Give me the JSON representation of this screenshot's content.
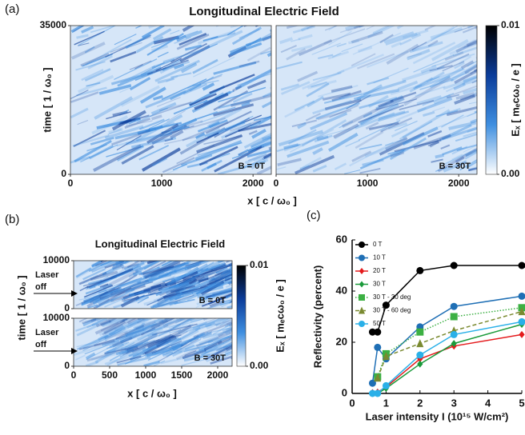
{
  "chart_data": [
    {
      "type": "heatmap",
      "panel_label": "(a)",
      "title": "Longitudinal Electric Field",
      "xlabel": "x [ c / ω₀ ]",
      "ylabel": "time [ 1 / ω₀ ]",
      "colorbar_label": "Eₓ [ mₑcω₀ / e ]",
      "xlim": [
        0,
        2200
      ],
      "xticks": [
        0,
        1000,
        2000
      ],
      "ylim": [
        0,
        35000
      ],
      "yticks": [
        0,
        35000
      ],
      "clim": [
        0,
        0.01
      ],
      "cticks": [
        {
          "value": 0,
          "label": "0.00"
        },
        0.01
      ],
      "colormap": [
        "#ffffff",
        "#3f8fe0",
        "#0b3c9a",
        "#000000"
      ],
      "panels": [
        {
          "annotation": "B = 0T"
        },
        {
          "annotation": "B = 30T"
        }
      ]
    },
    {
      "type": "heatmap",
      "panel_label": "(b)",
      "title": "Longitudinal Electric Field",
      "xlabel": "x [ c / ω₀ ]",
      "ylabel": "time [ 1 / ω₀ ]",
      "colorbar_label": "Eₓ [ mₑcω₀ / e ]",
      "xlim": [
        0,
        2200
      ],
      "xticks": [
        0,
        500,
        1000,
        1500,
        2000
      ],
      "ylim": [
        0,
        10000
      ],
      "yticks": [
        0,
        10000
      ],
      "clim": [
        0,
        0.01
      ],
      "cticks": [
        {
          "value": 0,
          "label": "0.00"
        },
        0.01
      ],
      "colormap": [
        "#ffffff",
        "#3f8fe0",
        "#0b3c9a",
        "#000000"
      ],
      "panels": [
        {
          "annotation": "B = 0T",
          "arrow_label": [
            "Laser",
            "off"
          ]
        },
        {
          "annotation": "B = 30T",
          "arrow_label": [
            "Laser",
            "off"
          ]
        }
      ]
    },
    {
      "type": "line",
      "panel_label": "(c)",
      "xlabel": "Laser intensity I (10¹⁵ W/cm²)",
      "ylabel": "Reflectivity (percent)",
      "xlim": [
        0,
        5
      ],
      "xticks": [
        0,
        1,
        2,
        3,
        4,
        5
      ],
      "ylim": [
        0,
        60
      ],
      "yticks": [
        0,
        20,
        40,
        60
      ],
      "legend": "upper-left",
      "x": [
        0.6,
        0.75,
        1,
        2,
        3,
        5
      ],
      "series": [
        {
          "name": "0 T",
          "color": "#000000",
          "marker": "circle",
          "dash": "solid",
          "values": [
            24,
            24,
            34.5,
            48,
            50,
            50
          ]
        },
        {
          "name": "10 T",
          "color": "#1f6fb5",
          "marker": "circle",
          "dash": "solid",
          "values": [
            4,
            18,
            13.5,
            26,
            34,
            38
          ]
        },
        {
          "name": "20 T",
          "color": "#e41a1c",
          "marker": "diamond",
          "dash": "solid",
          "values": [
            0.3,
            0.5,
            2.5,
            13.5,
            18.5,
            23
          ]
        },
        {
          "name": "30 T",
          "color": "#1a9a3a",
          "marker": "diamond",
          "dash": "solid",
          "values": [
            0,
            0,
            2,
            11.5,
            19.5,
            27
          ]
        },
        {
          "name": "30 T - 30 deg",
          "color": "#3cb043",
          "marker": "square",
          "dash": "dotted",
          "values": [
            null,
            6.5,
            15.5,
            24,
            30,
            33.5
          ]
        },
        {
          "name": "30 T - 60 deg",
          "color": "#7a8a30",
          "marker": "triangle",
          "dash": "dashed",
          "values": [
            null,
            6,
            14.5,
            19.5,
            24.5,
            32
          ]
        },
        {
          "name": "50 T",
          "color": "#2ab0e8",
          "marker": "circle",
          "dash": "solid",
          "values": [
            0,
            0,
            3,
            15,
            23,
            28
          ]
        }
      ]
    }
  ]
}
